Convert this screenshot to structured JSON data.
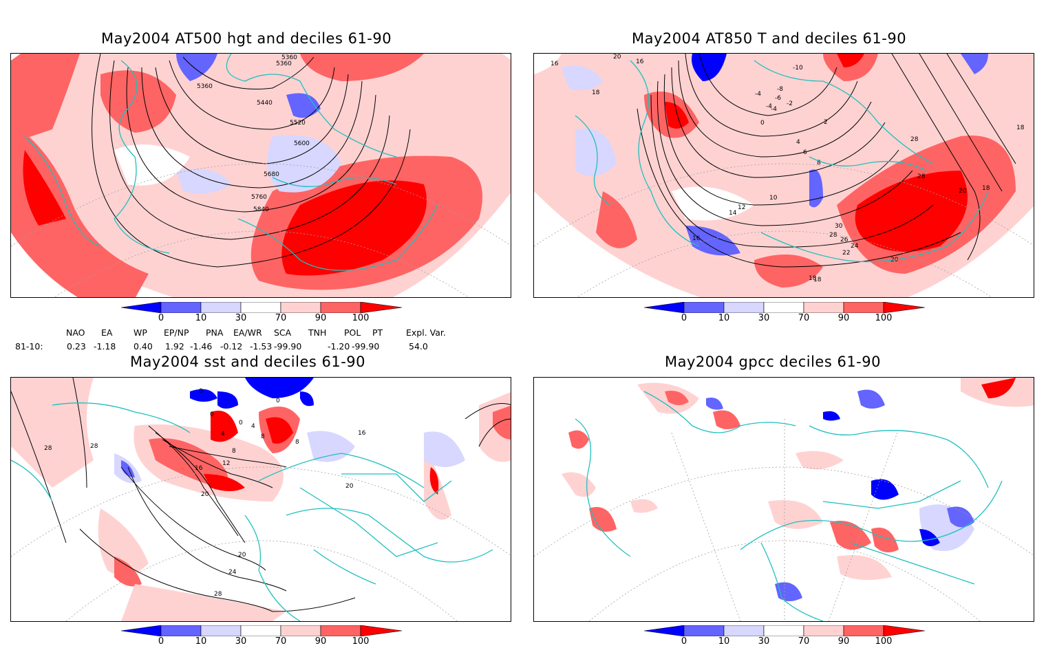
{
  "panels": [
    {
      "title": "May2004 AT500 hgt and deciles 61-90",
      "contour_labels": [
        "5360",
        "5360",
        "5360",
        "5440",
        "5520",
        "5600",
        "5680",
        "5760",
        "5840"
      ]
    },
    {
      "title": "May2004 AT850 T and deciles 61-90",
      "contour_labels": [
        "16",
        "16",
        "18",
        "20",
        "-10",
        "-4",
        "-8",
        "-4",
        "-6",
        "-2",
        "-4",
        "0",
        "2",
        "4",
        "6",
        "8",
        "10",
        "12",
        "14",
        "16",
        "18",
        "20",
        "22",
        "24",
        "26",
        "28",
        "30",
        "28",
        "18",
        "28",
        "18",
        "20",
        "18"
      ]
    },
    {
      "title": "May2004 sst and deciles 61-90",
      "contour_labels": [
        "0",
        "0",
        "0",
        "0",
        "4",
        "4",
        "8",
        "8",
        "8",
        "12",
        "16",
        "16",
        "20",
        "20",
        "20",
        "24",
        "28",
        "28",
        "28"
      ]
    },
    {
      "title": "May2004 gpcc deciles 61-90",
      "contour_labels": []
    }
  ],
  "colorbar": {
    "ticks": [
      "0",
      "10",
      "30",
      "70",
      "90",
      "100"
    ],
    "colors": [
      "#0000ff",
      "#6464ff",
      "#d7d7ff",
      "#ffffff",
      "#ffd2d2",
      "#ff6464",
      "#ff0000"
    ]
  },
  "indices": {
    "headers": [
      "NAO",
      "EA",
      "WP",
      "EP/NP",
      "PNA",
      "EA/WR",
      "SCA",
      "TNH",
      "POL",
      "PT",
      "Expl. Var."
    ],
    "row_label": "81-10:",
    "values": [
      "0.23",
      "-1.18",
      "0.40",
      "1.92",
      "-1.46",
      "-0.12",
      "-1.53",
      "-99.90",
      "-1.20",
      "-99.90",
      "54.0"
    ]
  },
  "colors": {
    "coast": "#1fbfbf",
    "contour": "#000000",
    "grid": "#a0a0a0"
  }
}
